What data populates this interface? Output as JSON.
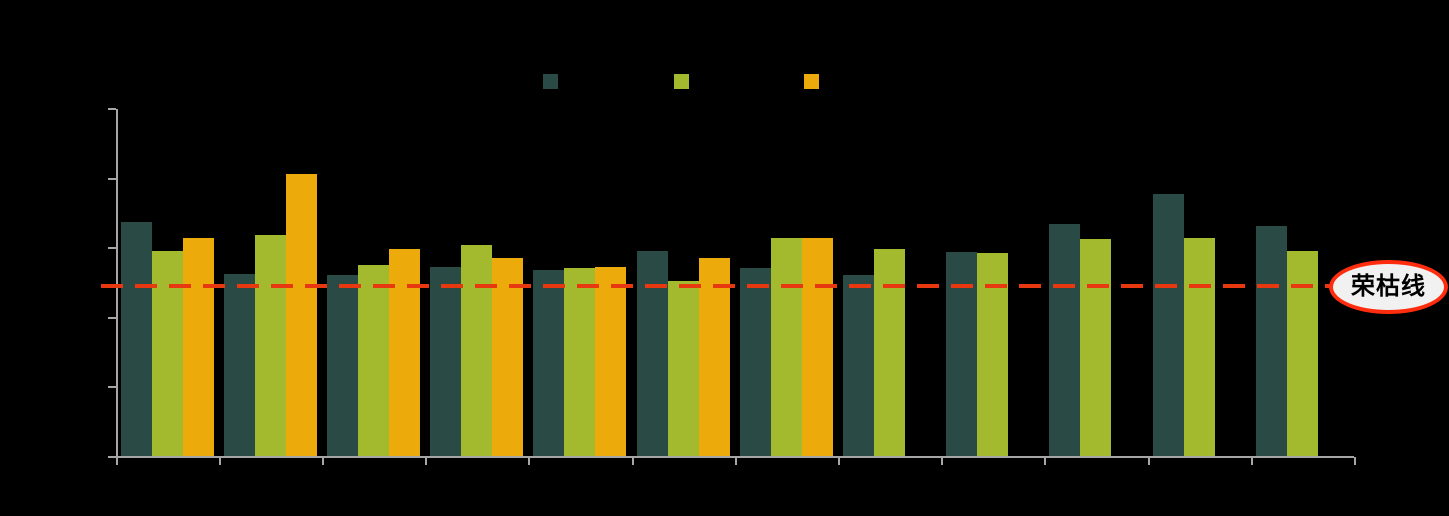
{
  "app": {
    "background_color": "#000000"
  },
  "chart_data": {
    "type": "bar",
    "title": "",
    "categories": [
      "",
      "",
      "",
      "",
      "",
      "",
      "",
      "",
      "",
      "",
      "",
      ""
    ],
    "series": [
      {
        "name": "",
        "color": "#2a4a46",
        "values": [
          50.87,
          50.12,
          50.11,
          50.23,
          50.19,
          50.46,
          50.21,
          50.11,
          50.44,
          50.85,
          51.27,
          50.81
        ]
      },
      {
        "name": "",
        "color": "#a4ba2e",
        "values": [
          50.45,
          50.68,
          50.25,
          50.54,
          50.21,
          50.02,
          50.64,
          50.48,
          50.43,
          50.63,
          50.64,
          50.46
        ]
      },
      {
        "name": "",
        "color": "#ecaa0b",
        "values": [
          50.64,
          51.57,
          50.48,
          50.36,
          50.22,
          50.35,
          50.64,
          null,
          null,
          null,
          null,
          null
        ]
      }
    ],
    "ylim": [
      47.5,
      52.5
    ],
    "y_tick_step": 1,
    "y_tick_count": 6,
    "y_tick_labels_visible": false,
    "x_tick_labels_visible": false,
    "grid": false,
    "legend_position": "top",
    "axis_color": "#a6a6a6",
    "reference_line": {
      "value": 49.95,
      "label": "荣枯线",
      "line_color": "#e8380f",
      "style": "dashed",
      "badge_fill": "#f1f1f1",
      "badge_border_color": "#ff2d0e",
      "badge_text_color": "#000000"
    }
  }
}
